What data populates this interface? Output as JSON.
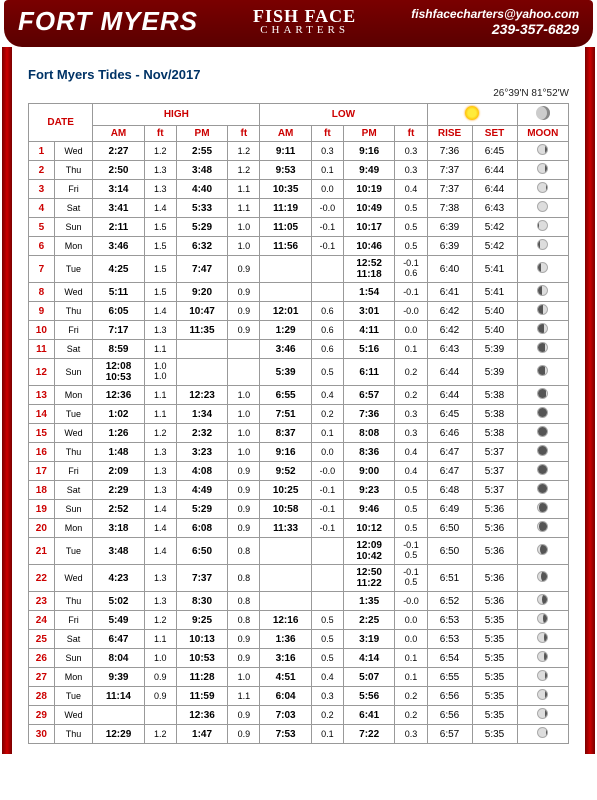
{
  "header": {
    "title": "FORT MYERS",
    "logo_row1": "FISH FACE",
    "logo_row2": "CHARTERS",
    "email": "fishfacecharters@yahoo.com",
    "phone": "239-357-6829"
  },
  "chart": {
    "title": "Fort Myers Tides - Nov/2017",
    "coords": "26°39'N 81°52'W",
    "headers": {
      "date": "DATE",
      "high": "HIGH",
      "low": "LOW",
      "am": "AM",
      "pm": "PM",
      "ft": "ft",
      "rise": "RISE",
      "set": "SET",
      "moon": "MOON"
    },
    "rows": [
      {
        "d": 1,
        "dow": "Wed",
        "ham": "2:27",
        "hamf": "1.2",
        "hpm": "2:55",
        "hpmf": "1.2",
        "lam": "9:11",
        "lamf": "0.3",
        "lpm": "9:16",
        "lpmf": "0.3",
        "rise": "7:36",
        "set": "6:45",
        "ms": "30",
        "ml": "r"
      },
      {
        "d": 2,
        "dow": "Thu",
        "ham": "2:50",
        "hamf": "1.3",
        "hpm": "3:48",
        "hpmf": "1.2",
        "lam": "9:53",
        "lamf": "0.1",
        "lpm": "9:49",
        "lpmf": "0.3",
        "rise": "7:37",
        "set": "6:44",
        "ms": "20",
        "ml": "r"
      },
      {
        "d": 3,
        "dow": "Fri",
        "ham": "3:14",
        "hamf": "1.3",
        "hpm": "4:40",
        "hpmf": "1.1",
        "lam": "10:35",
        "lamf": "0.0",
        "lpm": "10:19",
        "lpmf": "0.4",
        "rise": "7:37",
        "set": "6:44",
        "ms": "10",
        "ml": "r"
      },
      {
        "d": 4,
        "dow": "Sat",
        "ham": "3:41",
        "hamf": "1.4",
        "hpm": "5:33",
        "hpmf": "1.1",
        "lam": "11:19",
        "lamf": "-0.0",
        "lpm": "10:49",
        "lpmf": "0.5",
        "rise": "7:38",
        "set": "6:43",
        "ms": "0",
        "ml": "r"
      },
      {
        "d": 5,
        "dow": "Sun",
        "ham": "2:11",
        "hamf": "1.5",
        "hpm": "5:29",
        "hpmf": "1.0",
        "lam": "11:05",
        "lamf": "-0.1",
        "lpm": "10:17",
        "lpmf": "0.5",
        "rise": "6:39",
        "set": "5:42",
        "ms": "10",
        "ml": "l"
      },
      {
        "d": 6,
        "dow": "Mon",
        "ham": "3:46",
        "hamf": "1.5",
        "hpm": "6:32",
        "hpmf": "1.0",
        "lam": "11:56",
        "lamf": "-0.1",
        "lpm": "10:46",
        "lpmf": "0.5",
        "rise": "6:39",
        "set": "5:42",
        "ms": "20",
        "ml": "l"
      },
      {
        "d": 7,
        "dow": "Tue",
        "ham": "4:25",
        "hamf": "1.5",
        "hpm": "7:47",
        "hpmf": "0.9",
        "lam": "",
        "lamf": "",
        "lpm": "12:52\n11:18",
        "lpmf": "-0.1\n0.6",
        "rise": "6:40",
        "set": "5:41",
        "ms": "30",
        "ml": "l"
      },
      {
        "d": 8,
        "dow": "Wed",
        "ham": "5:11",
        "hamf": "1.5",
        "hpm": "9:20",
        "hpmf": "0.9",
        "lam": "",
        "lamf": "",
        "lpm": "1:54",
        "lpmf": "-0.1",
        "rise": "6:41",
        "set": "5:41",
        "ms": "40",
        "ml": "l"
      },
      {
        "d": 9,
        "dow": "Thu",
        "ham": "6:05",
        "hamf": "1.4",
        "hpm": "10:47",
        "hpmf": "0.9",
        "lam": "12:01",
        "lamf": "0.6",
        "lpm": "3:01",
        "lpmf": "-0.0",
        "rise": "6:42",
        "set": "5:40",
        "ms": "50",
        "ml": "l"
      },
      {
        "d": 10,
        "dow": "Fri",
        "ham": "7:17",
        "hamf": "1.3",
        "hpm": "11:35",
        "hpmf": "0.9",
        "lam": "1:29",
        "lamf": "0.6",
        "lpm": "4:11",
        "lpmf": "0.0",
        "rise": "6:42",
        "set": "5:40",
        "ms": "60",
        "ml": "l"
      },
      {
        "d": 11,
        "dow": "Sat",
        "ham": "8:59",
        "hamf": "1.1",
        "hpm": "",
        "hpmf": "",
        "lam": "3:46",
        "lamf": "0.6",
        "lpm": "5:16",
        "lpmf": "0.1",
        "rise": "6:43",
        "set": "5:39",
        "ms": "70",
        "ml": "l"
      },
      {
        "d": 12,
        "dow": "Sun",
        "ham": "12:08\n10:53",
        "hamf": "1.0\n1.0",
        "hpm": "",
        "hpmf": "",
        "lam": "5:39",
        "lamf": "0.5",
        "lpm": "6:11",
        "lpmf": "0.2",
        "rise": "6:44",
        "set": "5:39",
        "ms": "80",
        "ml": "l"
      },
      {
        "d": 13,
        "dow": "Mon",
        "ham": "12:36",
        "hamf": "1.1",
        "hpm": "12:23",
        "hpmf": "1.0",
        "lam": "6:55",
        "lamf": "0.4",
        "lpm": "6:57",
        "lpmf": "0.2",
        "rise": "6:44",
        "set": "5:38",
        "ms": "90",
        "ml": "l"
      },
      {
        "d": 14,
        "dow": "Tue",
        "ham": "1:02",
        "hamf": "1.1",
        "hpm": "1:34",
        "hpmf": "1.0",
        "lam": "7:51",
        "lamf": "0.2",
        "lpm": "7:36",
        "lpmf": "0.3",
        "rise": "6:45",
        "set": "5:38",
        "ms": "95",
        "ml": "l"
      },
      {
        "d": 15,
        "dow": "Wed",
        "ham": "1:26",
        "hamf": "1.2",
        "hpm": "2:32",
        "hpmf": "1.0",
        "lam": "8:37",
        "lamf": "0.1",
        "lpm": "8:08",
        "lpmf": "0.3",
        "rise": "6:46",
        "set": "5:38",
        "ms": "98",
        "ml": "l"
      },
      {
        "d": 16,
        "dow": "Thu",
        "ham": "1:48",
        "hamf": "1.3",
        "hpm": "3:23",
        "hpmf": "1.0",
        "lam": "9:16",
        "lamf": "0.0",
        "lpm": "8:36",
        "lpmf": "0.4",
        "rise": "6:47",
        "set": "5:37",
        "ms": "100",
        "ml": "l"
      },
      {
        "d": 17,
        "dow": "Fri",
        "ham": "2:09",
        "hamf": "1.3",
        "hpm": "4:08",
        "hpmf": "0.9",
        "lam": "9:52",
        "lamf": "-0.0",
        "lpm": "9:00",
        "lpmf": "0.4",
        "rise": "6:47",
        "set": "5:37",
        "ms": "100",
        "ml": "l"
      },
      {
        "d": 18,
        "dow": "Sat",
        "ham": "2:29",
        "hamf": "1.3",
        "hpm": "4:49",
        "hpmf": "0.9",
        "lam": "10:25",
        "lamf": "-0.1",
        "lpm": "9:23",
        "lpmf": "0.5",
        "rise": "6:48",
        "set": "5:37",
        "ms": "100",
        "ml": "r"
      },
      {
        "d": 19,
        "dow": "Sun",
        "ham": "2:52",
        "hamf": "1.4",
        "hpm": "5:29",
        "hpmf": "0.9",
        "lam": "10:58",
        "lamf": "-0.1",
        "lpm": "9:46",
        "lpmf": "0.5",
        "rise": "6:49",
        "set": "5:36",
        "ms": "95",
        "ml": "r"
      },
      {
        "d": 20,
        "dow": "Mon",
        "ham": "3:18",
        "hamf": "1.4",
        "hpm": "6:08",
        "hpmf": "0.9",
        "lam": "11:33",
        "lamf": "-0.1",
        "lpm": "10:12",
        "lpmf": "0.5",
        "rise": "6:50",
        "set": "5:36",
        "ms": "90",
        "ml": "r"
      },
      {
        "d": 21,
        "dow": "Tue",
        "ham": "3:48",
        "hamf": "1.4",
        "hpm": "6:50",
        "hpmf": "0.8",
        "lam": "",
        "lamf": "",
        "lpm": "12:09\n10:42",
        "lpmf": "-0.1\n0.5",
        "rise": "6:50",
        "set": "5:36",
        "ms": "80",
        "ml": "r"
      },
      {
        "d": 22,
        "dow": "Wed",
        "ham": "4:23",
        "hamf": "1.3",
        "hpm": "7:37",
        "hpmf": "0.8",
        "lam": "",
        "lamf": "",
        "lpm": "12:50\n11:22",
        "lpmf": "-0.1\n0.5",
        "rise": "6:51",
        "set": "5:36",
        "ms": "70",
        "ml": "r"
      },
      {
        "d": 23,
        "dow": "Thu",
        "ham": "5:02",
        "hamf": "1.3",
        "hpm": "8:30",
        "hpmf": "0.8",
        "lam": "",
        "lamf": "",
        "lpm": "1:35",
        "lpmf": "-0.0",
        "rise": "6:52",
        "set": "5:36",
        "ms": "60",
        "ml": "r"
      },
      {
        "d": 24,
        "dow": "Fri",
        "ham": "5:49",
        "hamf": "1.2",
        "hpm": "9:25",
        "hpmf": "0.8",
        "lam": "12:16",
        "lamf": "0.5",
        "lpm": "2:25",
        "lpmf": "0.0",
        "rise": "6:53",
        "set": "5:35",
        "ms": "50",
        "ml": "r"
      },
      {
        "d": 25,
        "dow": "Sat",
        "ham": "6:47",
        "hamf": "1.1",
        "hpm": "10:13",
        "hpmf": "0.9",
        "lam": "1:36",
        "lamf": "0.5",
        "lpm": "3:19",
        "lpmf": "0.0",
        "rise": "6:53",
        "set": "5:35",
        "ms": "40",
        "ml": "r"
      },
      {
        "d": 26,
        "dow": "Sun",
        "ham": "8:04",
        "hamf": "1.0",
        "hpm": "10:53",
        "hpmf": "0.9",
        "lam": "3:16",
        "lamf": "0.5",
        "lpm": "4:14",
        "lpmf": "0.1",
        "rise": "6:54",
        "set": "5:35",
        "ms": "35",
        "ml": "r"
      },
      {
        "d": 27,
        "dow": "Mon",
        "ham": "9:39",
        "hamf": "0.9",
        "hpm": "11:28",
        "hpmf": "1.0",
        "lam": "4:51",
        "lamf": "0.4",
        "lpm": "5:07",
        "lpmf": "0.1",
        "rise": "6:55",
        "set": "5:35",
        "ms": "30",
        "ml": "r"
      },
      {
        "d": 28,
        "dow": "Tue",
        "ham": "11:14",
        "hamf": "0.9",
        "hpm": "11:59",
        "hpmf": "1.1",
        "lam": "6:04",
        "lamf": "0.3",
        "lpm": "5:56",
        "lpmf": "0.2",
        "rise": "6:56",
        "set": "5:35",
        "ms": "25",
        "ml": "r"
      },
      {
        "d": 29,
        "dow": "Wed",
        "ham": "",
        "hamf": "",
        "hpm": "12:36",
        "hpmf": "0.9",
        "lam": "7:03",
        "lamf": "0.2",
        "lpm": "6:41",
        "lpmf": "0.2",
        "rise": "6:56",
        "set": "5:35",
        "ms": "20",
        "ml": "r"
      },
      {
        "d": 30,
        "dow": "Thu",
        "ham": "12:29",
        "hamf": "1.2",
        "hpm": "1:47",
        "hpmf": "0.9",
        "lam": "7:53",
        "lamf": "0.1",
        "lpm": "7:22",
        "lpmf": "0.3",
        "rise": "6:57",
        "set": "5:35",
        "ms": "15",
        "ml": "r"
      }
    ]
  }
}
